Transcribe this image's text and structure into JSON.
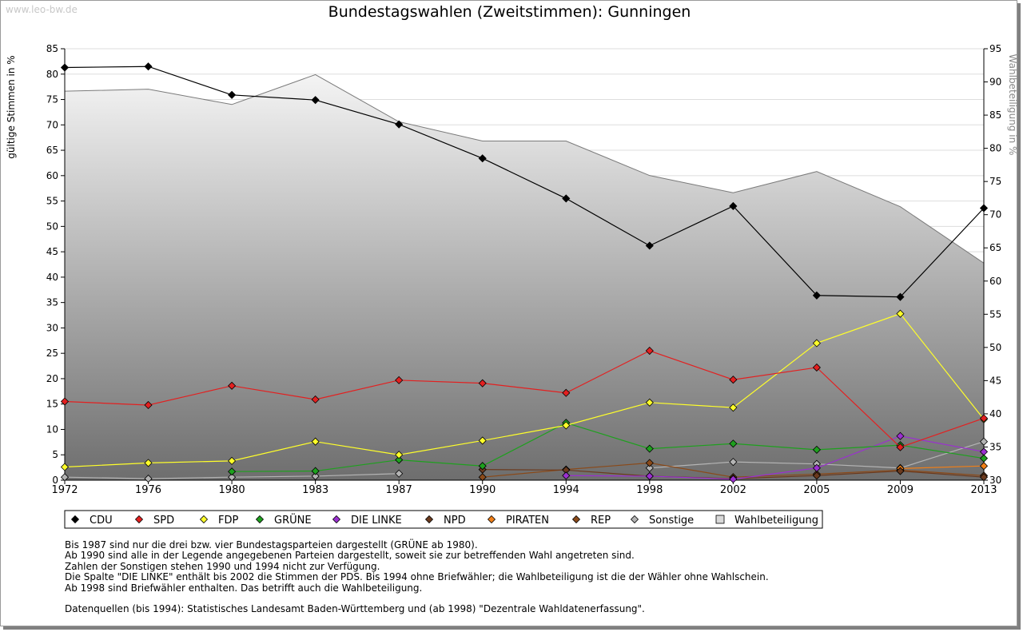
{
  "watermark": "www.leo-bw.de",
  "chart_data": {
    "type": "line",
    "title": "Bundestagswahlen (Zweitstimmen): Gunningen",
    "ylabel": "gültige Stimmen in %",
    "y2label": "Wahlbeteiligung in %",
    "ylim": [
      0,
      85
    ],
    "y2lim": [
      30,
      95
    ],
    "yticks": [
      0,
      5,
      10,
      15,
      20,
      25,
      30,
      35,
      40,
      45,
      50,
      55,
      60,
      65,
      70,
      75,
      80,
      85
    ],
    "y2ticks": [
      30,
      35,
      40,
      45,
      50,
      55,
      60,
      65,
      70,
      75,
      80,
      85,
      90,
      95
    ],
    "categories": [
      "1972",
      "1976",
      "1980",
      "1983",
      "1987",
      "1990",
      "1994",
      "1998",
      "2002",
      "2005",
      "2009",
      "2013"
    ],
    "grid": true,
    "legend_position": "bottom",
    "turnout": {
      "name": "Wahlbeteiligung",
      "color": "#d8d8d8",
      "values": [
        88.6,
        88.9,
        86.6,
        91.1,
        84.0,
        81.1,
        81.1,
        75.9,
        73.3,
        76.5,
        71.2,
        62.7
      ]
    },
    "series": [
      {
        "name": "CDU",
        "color": "#000000",
        "values": [
          81.3,
          81.5,
          75.9,
          74.9,
          70.1,
          63.4,
          55.5,
          46.2,
          54.0,
          36.4,
          36.1,
          53.6
        ]
      },
      {
        "name": "SPD",
        "color": "#e32020",
        "values": [
          15.5,
          14.8,
          18.6,
          15.9,
          19.7,
          19.1,
          17.2,
          25.5,
          19.8,
          22.2,
          6.5,
          12.2
        ]
      },
      {
        "name": "FDP",
        "color": "#ffff2a",
        "values": [
          2.6,
          3.4,
          3.8,
          7.6,
          5.0,
          7.8,
          10.8,
          15.3,
          14.3,
          27.0,
          32.8,
          12.0
        ]
      },
      {
        "name": "GRÜNE",
        "color": "#1ea01e",
        "values": [
          null,
          null,
          1.7,
          1.8,
          4.0,
          2.8,
          11.3,
          6.2,
          7.2,
          6.0,
          6.9,
          4.3
        ]
      },
      {
        "name": "DIE LINKE",
        "color": "#9b30d0",
        "values": [
          null,
          null,
          null,
          null,
          null,
          null,
          0.9,
          0.8,
          0.2,
          2.4,
          8.7,
          5.6
        ]
      },
      {
        "name": "NPD",
        "color": "#6b3a1e",
        "values": [
          null,
          null,
          null,
          null,
          null,
          2.1,
          2.0,
          0.8,
          0.3,
          0.9,
          1.8,
          0.6
        ]
      },
      {
        "name": "PIRATEN",
        "color": "#f07f18",
        "values": [
          null,
          null,
          null,
          null,
          null,
          null,
          null,
          null,
          null,
          null,
          2.3,
          2.8
        ]
      },
      {
        "name": "REP",
        "color": "#8a4a1a",
        "values": [
          null,
          null,
          null,
          null,
          null,
          0.6,
          2.1,
          3.4,
          0.6,
          1.2,
          2.0,
          0.9
        ]
      },
      {
        "name": "Sonstige",
        "color": "#b4b4b4",
        "values": [
          0.6,
          0.3,
          0.6,
          0.8,
          1.3,
          null,
          null,
          2.4,
          3.6,
          3.2,
          2.4,
          7.6
        ]
      }
    ]
  },
  "notes": [
    "Bis 1987 sind nur die drei bzw. vier Bundestagsparteien dargestellt (GRÜNE ab 1980).",
    "Ab 1990 sind alle in der Legende angegebenen Parteien dargestellt, soweit sie zur betreffenden Wahl angetreten sind.",
    "Zahlen der Sonstigen stehen 1990 und 1994 nicht zur Verfügung.",
    "Die Spalte \"DIE LINKE\" enthält bis 2002 die Stimmen der PDS. Bis 1994 ohne Briefwähler; die Wahlbeteiligung ist die der Wähler ohne Wahlschein.",
    "Ab 1998 sind Briefwähler enthalten. Das betrifft auch die Wahlbeteiligung."
  ],
  "source": "Datenquellen (bis 1994): Statistisches Landesamt Baden-Württemberg und (ab 1998) \"Dezentrale Wahldatenerfassung\"."
}
